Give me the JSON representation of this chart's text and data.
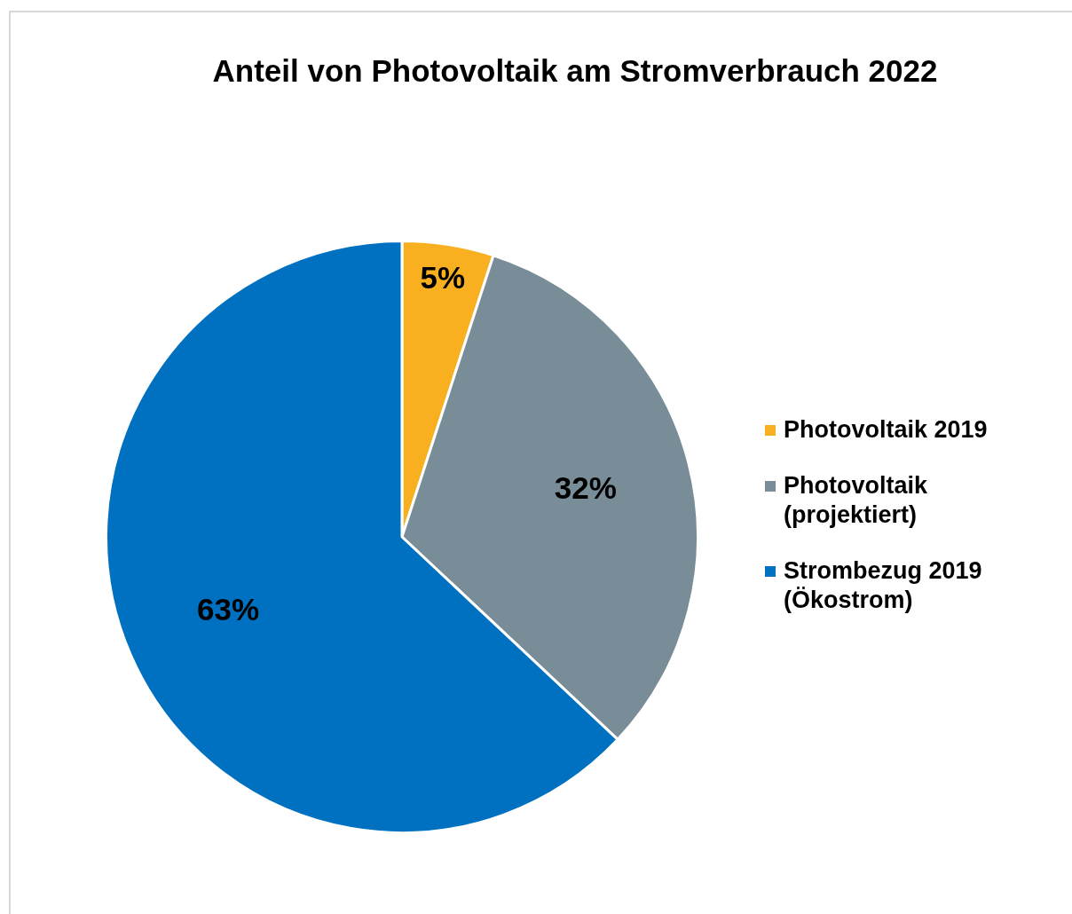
{
  "chart_data": {
    "type": "pie",
    "title": "Anteil von Photovoltaik am Stromverbrauch 2022",
    "categories": [
      "Photovoltaik 2019",
      "Photovoltaik (projektiert)",
      "Strombezug 2019 (Ökostrom)"
    ],
    "values": [
      5,
      32,
      63
    ],
    "colors": [
      "#f8b020",
      "#788d97",
      "#0070c0"
    ],
    "value_labels": [
      "5%",
      "32%",
      "63%"
    ],
    "legend": "right"
  }
}
